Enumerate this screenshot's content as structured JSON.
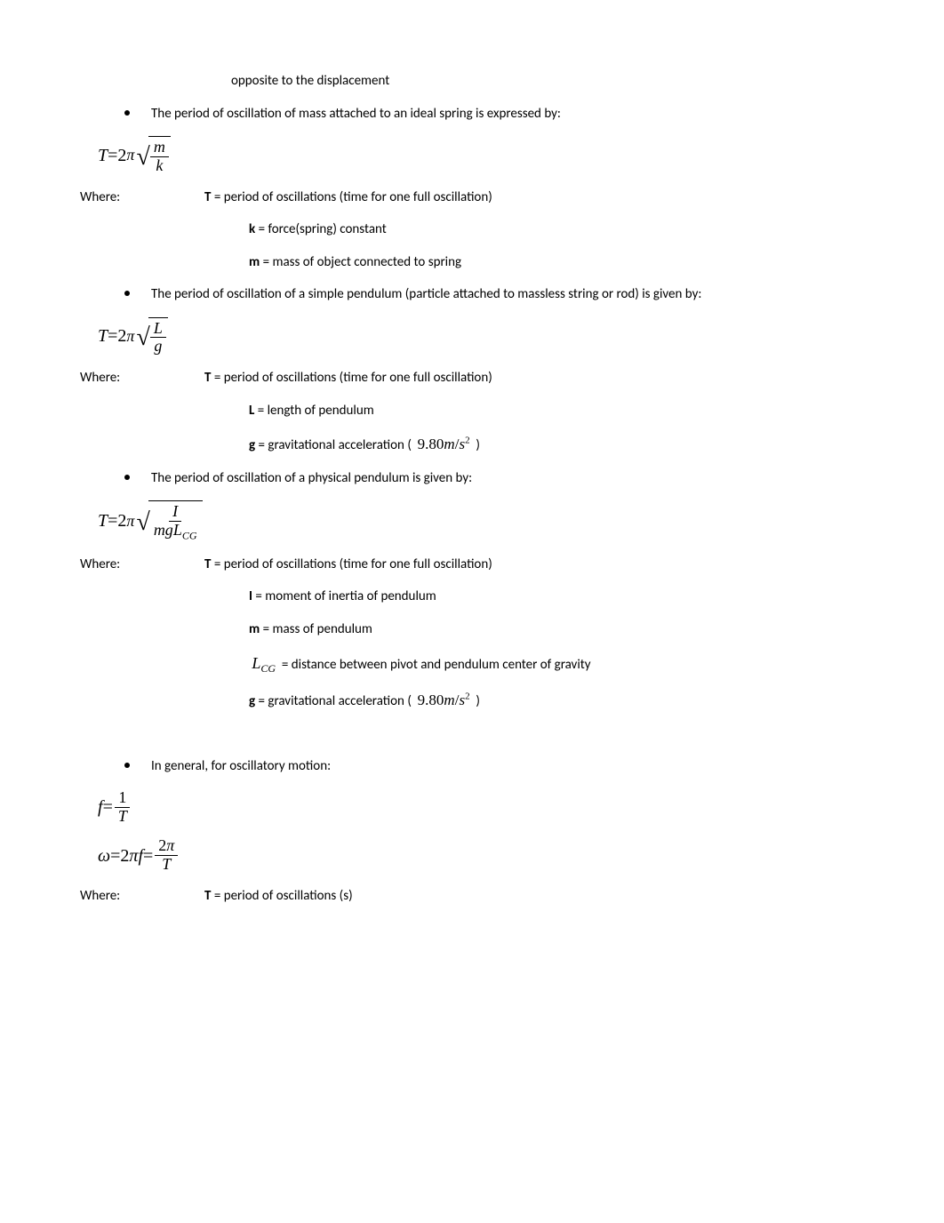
{
  "top_line": "opposite to the displacement",
  "bullets": {
    "spring": "The period of oscillation of mass attached to an ideal spring is expressed by:",
    "simple_pendulum": "The period of oscillation of a simple pendulum (particle attached to massless string or rod) is given by:",
    "physical_pendulum": "The period of oscillation of a physical pendulum is given by:",
    "general": "In general, for oscillatory motion:"
  },
  "formulas": {
    "spring": {
      "lhs": "T",
      "eq": "=",
      "two": "2",
      "pi": "π",
      "num": "m",
      "den": "k"
    },
    "pendulum": {
      "lhs": "T",
      "eq": "=",
      "two": "2",
      "pi": "π",
      "num": "L",
      "den": "g"
    },
    "physical": {
      "lhs": "T",
      "eq": "=",
      "two": "2",
      "pi": "π",
      "num": "I",
      "den_m": "mg",
      "den_L": "L",
      "den_sub": "CG"
    },
    "freq": {
      "lhs": "f",
      "eq": "=",
      "num": "1",
      "den": "T"
    },
    "omega": {
      "lhs": "ω",
      "eq": "=",
      "two": "2",
      "pi": "π",
      "f": "f",
      "eq2": "=",
      "num2": "2",
      "pi2": "π",
      "den2": "T"
    }
  },
  "where_label": "Where:",
  "definitions": {
    "T_full": " = period of oscillations (time for one full oscillation)",
    "T_s": " = period of oscillations (s)",
    "k": " = force(spring) constant",
    "m_spring": " = mass of object connected to spring",
    "L": " = length of pendulum",
    "g": " = gravitational acceleration (",
    "g_close": ")",
    "I": " = moment of inertia of pendulum",
    "m_pend": " = mass of pendulum",
    "Lcg": " = distance between pivot and pendulum center of gravity"
  },
  "vars": {
    "T": "T",
    "k": "k",
    "m": "m",
    "L": "L",
    "g": "g",
    "I": "I",
    "Lcg_L": "L",
    "Lcg_sub": "CG"
  },
  "accel": {
    "val": "9.80",
    "m": "m",
    "slash": "/",
    "s": "s",
    "sq": "2"
  }
}
